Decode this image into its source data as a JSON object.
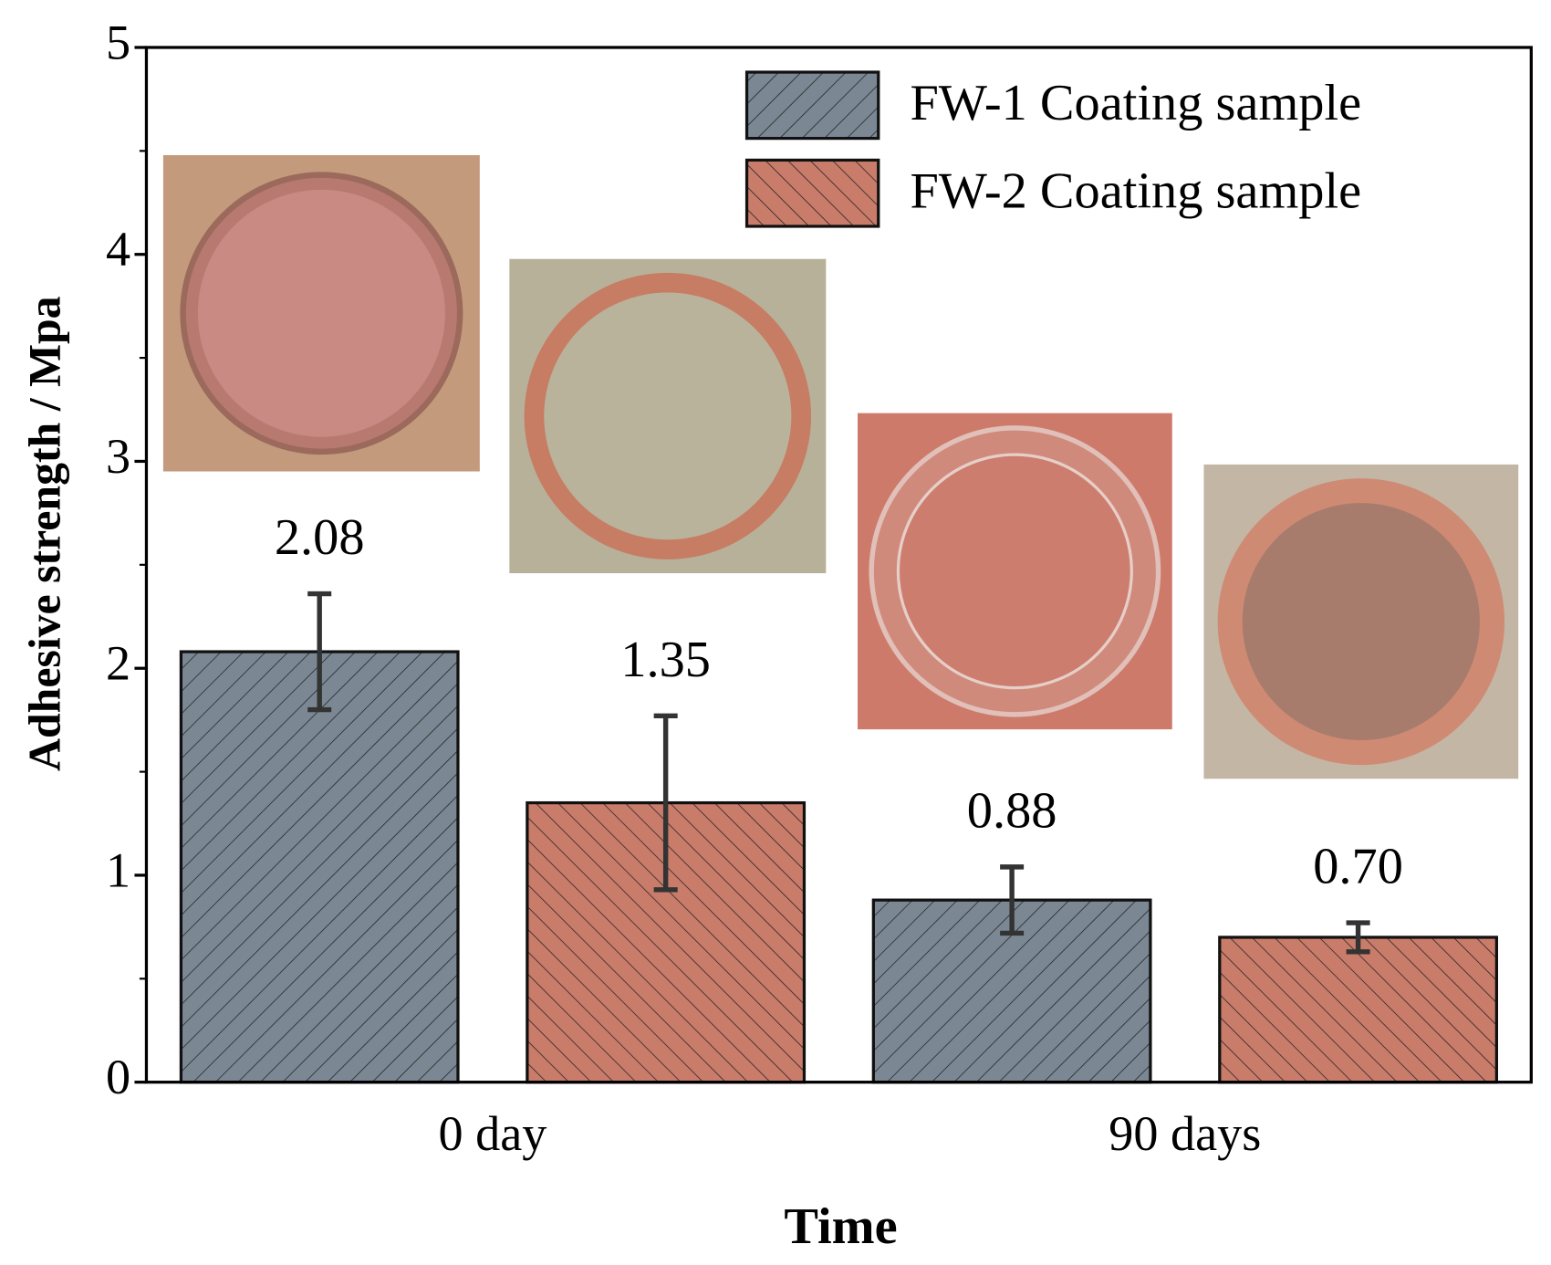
{
  "chart_data": {
    "type": "bar",
    "categories": [
      "0 day",
      "90 days"
    ],
    "series": [
      {
        "name": "FW-1 Coating sample",
        "color": "#7b8894",
        "hatch": "/",
        "values": [
          2.08,
          0.88
        ],
        "value_labels": [
          "2.08",
          "0.88"
        ],
        "errors": [
          0.28,
          0.16
        ]
      },
      {
        "name": "FW-2 Coating sample",
        "color": "#c97c6a",
        "hatch": "\\",
        "values": [
          1.35,
          0.7
        ],
        "value_labels": [
          "1.35",
          "0.70"
        ],
        "errors": [
          0.42,
          0.07
        ]
      }
    ],
    "x_label": "Time",
    "y_label": "Adhesive strength / Mpa",
    "ylim": [
      0,
      5
    ],
    "yticks": [
      0,
      1,
      2,
      3,
      4,
      5
    ],
    "legend": "upper right"
  }
}
